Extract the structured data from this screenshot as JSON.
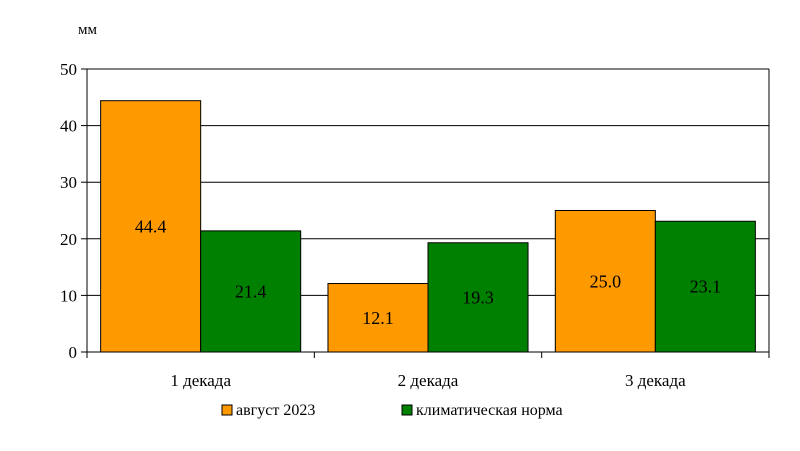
{
  "chart_data": {
    "type": "bar",
    "unit_label": "мм",
    "categories": [
      "1 декада",
      "2 декада",
      "3 декада"
    ],
    "series": [
      {
        "name": "август 2023",
        "values": [
          44.4,
          12.1,
          25.0
        ],
        "value_labels": [
          "44.4",
          "12.1",
          "25.0"
        ],
        "color": "#FF9900"
      },
      {
        "name": "климатическая норма",
        "values": [
          21.4,
          19.3,
          23.1
        ],
        "value_labels": [
          "21.4",
          "19.3",
          "23.1"
        ],
        "color": "#008000"
      }
    ],
    "ylim": [
      0,
      50
    ],
    "yticks": [
      0,
      10,
      20,
      30,
      40,
      50
    ],
    "ytick_labels": [
      "0",
      "10",
      "20",
      "30",
      "40",
      "50"
    ],
    "grid": true,
    "legend_position": "bottom"
  }
}
